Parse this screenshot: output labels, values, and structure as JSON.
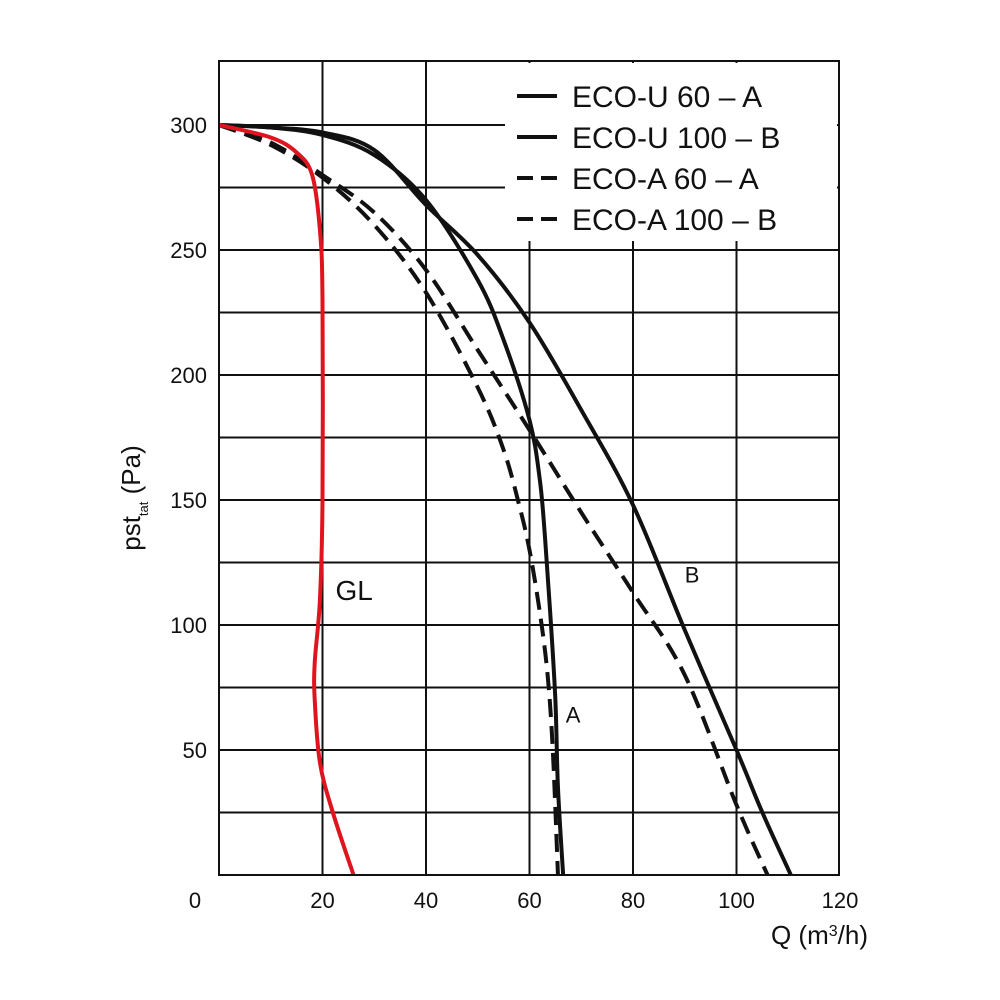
{
  "chart_data": {
    "type": "line",
    "xlabel": {
      "base": "Q (m",
      "sup": "3",
      "tail": "/h)"
    },
    "ylabel": {
      "base": "pst",
      "sub": "tat",
      "tail": " (Pa)"
    },
    "xlim": [
      0,
      120
    ],
    "ylim": [
      0,
      325
    ],
    "x_ticks": [
      {
        "value": 0,
        "label": "0"
      },
      {
        "value": 20,
        "label": "20"
      },
      {
        "value": 40,
        "label": "40"
      },
      {
        "value": 60,
        "label": "60"
      },
      {
        "value": 80,
        "label": "80"
      },
      {
        "value": 100,
        "label": "100"
      },
      {
        "value": 120,
        "label": "120"
      }
    ],
    "y_ticks": [
      {
        "value": 50,
        "label": "50"
      },
      {
        "value": 100,
        "label": "100"
      },
      {
        "value": 150,
        "label": "150"
      },
      {
        "value": 200,
        "label": "200"
      },
      {
        "value": 250,
        "label": "250"
      },
      {
        "value": 300,
        "label": "300"
      }
    ],
    "y_gridlines": [
      25,
      50,
      75,
      100,
      125,
      150,
      175,
      200,
      225,
      250,
      275,
      300
    ],
    "x_gridlines": [
      20,
      40,
      60,
      80,
      100
    ],
    "grid": true,
    "legend_position": "top-right",
    "series": [
      {
        "name": "ECO-U 60 – A",
        "style": "solid",
        "color": "#111111",
        "points": [
          [
            0,
            300
          ],
          [
            10,
            299
          ],
          [
            20,
            296
          ],
          [
            30,
            288
          ],
          [
            40,
            270
          ],
          [
            50,
            238
          ],
          [
            55,
            214
          ],
          [
            60,
            182
          ],
          [
            62,
            158
          ],
          [
            63,
            135
          ],
          [
            64,
            105
          ],
          [
            65,
            70
          ],
          [
            65.5,
            35
          ],
          [
            66.5,
            0
          ]
        ]
      },
      {
        "name": "ECO-U 100 – B",
        "style": "solid",
        "color": "#111111",
        "points": [
          [
            0,
            300
          ],
          [
            10,
            299
          ],
          [
            20,
            297
          ],
          [
            30,
            290
          ],
          [
            40,
            268
          ],
          [
            50,
            248
          ],
          [
            60,
            221
          ],
          [
            70,
            186
          ],
          [
            80,
            148
          ],
          [
            90,
            98
          ],
          [
            100,
            50
          ],
          [
            105,
            25
          ],
          [
            110.5,
            0
          ]
        ]
      },
      {
        "name": "ECO-A 60 – A",
        "style": "dashed",
        "color": "#111111",
        "points": [
          [
            0,
            300
          ],
          [
            10,
            292
          ],
          [
            20,
            279
          ],
          [
            30,
            260
          ],
          [
            40,
            233
          ],
          [
            50,
            195
          ],
          [
            55,
            170
          ],
          [
            58,
            148
          ],
          [
            60,
            130
          ],
          [
            62,
            105
          ],
          [
            63.5,
            80
          ],
          [
            64.5,
            50
          ],
          [
            65.5,
            0
          ]
        ]
      },
      {
        "name": "ECO-A 100 – B",
        "style": "dashed",
        "color": "#111111",
        "points": [
          [
            0,
            300
          ],
          [
            10,
            293
          ],
          [
            20,
            280
          ],
          [
            30,
            265
          ],
          [
            40,
            242
          ],
          [
            50,
            210
          ],
          [
            60,
            178
          ],
          [
            70,
            145
          ],
          [
            80,
            113
          ],
          [
            90,
            80
          ],
          [
            100,
            28
          ],
          [
            106,
            0
          ]
        ]
      },
      {
        "name": "GL",
        "style": "solid",
        "color": "#e0141e",
        "points": [
          [
            0,
            300
          ],
          [
            10,
            295
          ],
          [
            15,
            289
          ],
          [
            18,
            280
          ],
          [
            19.5,
            258
          ],
          [
            20,
            230
          ],
          [
            20,
            150
          ],
          [
            19.5,
            110
          ],
          [
            18.5,
            85
          ],
          [
            18.5,
            70
          ],
          [
            19.5,
            45
          ],
          [
            22,
            25
          ],
          [
            26,
            0
          ]
        ]
      }
    ],
    "annotations": [
      {
        "text": "GL",
        "x": 22.5,
        "y": 110,
        "color": "#e0141e",
        "size": 28
      },
      {
        "text": "B",
        "x": 90,
        "y": 117,
        "color": "#111111",
        "size": 22
      },
      {
        "text": "A",
        "x": 67,
        "y": 61,
        "color": "#111111",
        "size": 22
      }
    ]
  }
}
